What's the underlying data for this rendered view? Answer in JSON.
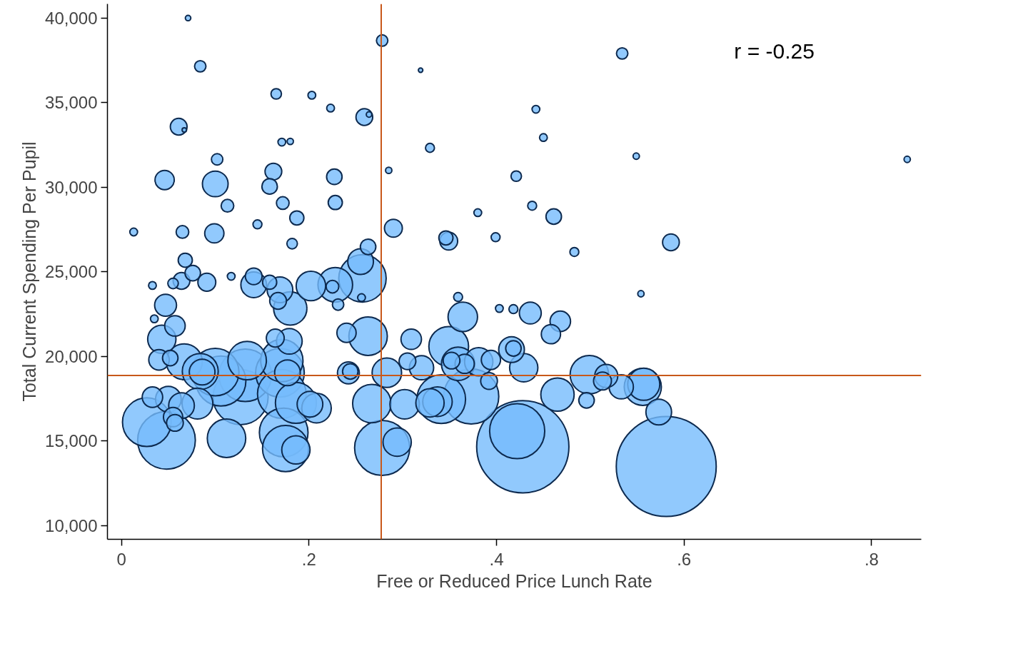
{
  "chart_data": {
    "type": "bubble",
    "xlabel": "Free or Reduced Price Lunch Rate",
    "ylabel": "Total Current Spending Per Pupil",
    "annotations": [
      "r = -0.25"
    ],
    "color": "#75bbfd",
    "marker": "circle",
    "grid": false,
    "xlim": [
      -0.015,
      0.853
    ],
    "ylim": [
      9200,
      40835
    ],
    "xticks": [
      0,
      {
        "value": 0.2,
        "label": ".2"
      },
      {
        "value": 0.4,
        "label": ".4"
      },
      {
        "value": 0.6,
        "label": ".6"
      },
      {
        "value": 0.8,
        "label": ".8"
      }
    ],
    "yticks": [
      {
        "value": 10000,
        "label": "10,000"
      },
      {
        "value": 15000,
        "label": "15,000"
      },
      {
        "value": 20000,
        "label": "20,000"
      },
      {
        "value": 25000,
        "label": "25,000"
      },
      {
        "value": 30000,
        "label": "30,000"
      },
      {
        "value": 35000,
        "label": "35,000"
      },
      {
        "value": 40000,
        "label": "40,000"
      }
    ],
    "ref_lines": [
      {
        "axis": "x",
        "value": 0.277,
        "color": "#c8581a"
      },
      {
        "axis": "y",
        "value": 18880,
        "color": "#c8581a"
      }
    ],
    "x": [
      0.071,
      0.278,
      0.084,
      0.319,
      0.534,
      0.165,
      0.203,
      0.223,
      0.259,
      0.264,
      0.442,
      0.061,
      0.067,
      0.45,
      0.171,
      0.18,
      0.329,
      0.102,
      0.549,
      0.838,
      0.046,
      0.1,
      0.162,
      0.158,
      0.227,
      0.285,
      0.421,
      0.113,
      0.172,
      0.228,
      0.438,
      0.38,
      0.461,
      0.187,
      0.013,
      0.065,
      0.099,
      0.29,
      0.145,
      0.346,
      0.349,
      0.399,
      0.586,
      0.182,
      0.483,
      0.263,
      0.068,
      0.255,
      0.257,
      0.076,
      0.033,
      0.055,
      0.064,
      0.091,
      0.117,
      0.141,
      0.141,
      0.158,
      0.169,
      0.202,
      0.228,
      0.225,
      0.256,
      0.554,
      0.359,
      0.231,
      0.047,
      0.167,
      0.18,
      0.035,
      0.057,
      0.364,
      0.403,
      0.418,
      0.436,
      0.468,
      0.043,
      0.24,
      0.263,
      0.458,
      0.164,
      0.179,
      0.309,
      0.349,
      0.04,
      0.067,
      0.052,
      0.084,
      0.086,
      0.1,
      0.106,
      0.134,
      0.132,
      0.171,
      0.169,
      0.177,
      0.127,
      0.305,
      0.32,
      0.359,
      0.352,
      0.366,
      0.381,
      0.394,
      0.416,
      0.418,
      0.429,
      0.242,
      0.244,
      0.283,
      0.499,
      0.517,
      0.513,
      0.533,
      0.556,
      0.557,
      0.033,
      0.05,
      0.081,
      0.064,
      0.055,
      0.057,
      0.171,
      0.186,
      0.201,
      0.208,
      0.267,
      0.302,
      0.329,
      0.341,
      0.337,
      0.373,
      0.392,
      0.465,
      0.496,
      0.573,
      0.027,
      0.048,
      0.112,
      0.173,
      0.175,
      0.186,
      0.278,
      0.294,
      0.428,
      0.422,
      0.581
    ],
    "values": [
      40000,
      38670,
      37150,
      36920,
      37910,
      35520,
      35440,
      34680,
      34150,
      34300,
      34610,
      33580,
      33390,
      32940,
      32670,
      32710,
      32330,
      31650,
      31840,
      31650,
      30430,
      30200,
      30930,
      30050,
      30620,
      31000,
      30660,
      28910,
      29070,
      29100,
      28910,
      28500,
      28270,
      28190,
      27360,
      27360,
      27280,
      27580,
      27810,
      27010,
      26820,
      27050,
      26750,
      26670,
      26180,
      26480,
      25690,
      25610,
      24620,
      24930,
      24200,
      24320,
      24470,
      24390,
      24740,
      24740,
      24240,
      24390,
      23940,
      24170,
      24240,
      24130,
      23480,
      23710,
      23520,
      23070,
      23030,
      23290,
      22840,
      22230,
      21810,
      22340,
      22840,
      22800,
      22570,
      22080,
      21020,
      21400,
      21200,
      21320,
      21090,
      20900,
      21020,
      20600,
      19800,
      19690,
      19910,
      19120,
      19080,
      19080,
      18550,
      19760,
      18890,
      19760,
      19040,
      19040,
      17600,
      19720,
      19340,
      19570,
      19760,
      19570,
      19690,
      19800,
      20410,
      20480,
      19340,
      19030,
      19120,
      19040,
      18930,
      18850,
      18550,
      18210,
      18210,
      18360,
      17600,
      17480,
      17220,
      17100,
      16420,
      16080,
      17790,
      17260,
      17180,
      16950,
      17220,
      17180,
      17260,
      17480,
      17330,
      17640,
      18550,
      17750,
      17410,
      16720,
      16120,
      15050,
      15170,
      15510,
      14560,
      14480,
      14600,
      14940,
      14670,
      15590,
      13500
    ],
    "sizes": [
      0.003,
      0.013,
      0.013,
      0.002,
      0.013,
      0.011,
      0.006,
      0.006,
      0.028,
      0.003,
      0.006,
      0.028,
      0.002,
      0.006,
      0.006,
      0.004,
      0.008,
      0.013,
      0.004,
      0.004,
      0.037,
      0.066,
      0.028,
      0.024,
      0.024,
      0.004,
      0.011,
      0.016,
      0.016,
      0.02,
      0.008,
      0.006,
      0.024,
      0.02,
      0.006,
      0.016,
      0.037,
      0.032,
      0.008,
      0.02,
      0.032,
      0.008,
      0.028,
      0.011,
      0.008,
      0.024,
      0.02,
      0.066,
      0.225,
      0.024,
      0.006,
      0.011,
      0.028,
      0.032,
      0.006,
      0.028,
      0.066,
      0.02,
      0.066,
      0.087,
      0.12,
      0.016,
      0.006,
      0.004,
      0.008,
      0.013,
      0.048,
      0.028,
      0.111,
      0.006,
      0.042,
      0.087,
      0.006,
      0.008,
      0.048,
      0.042,
      0.08,
      0.037,
      0.148,
      0.037,
      0.032,
      0.066,
      0.042,
      0.158,
      0.042,
      0.129,
      0.024,
      0.129,
      0.066,
      0.225,
      0.25,
      0.148,
      0.276,
      0.179,
      0.237,
      0.066,
      0.304,
      0.028,
      0.059,
      0.111,
      0.028,
      0.037,
      0.08,
      0.037,
      0.066,
      0.024,
      0.08,
      0.048,
      0.024,
      0.087,
      0.148,
      0.053,
      0.032,
      0.059,
      0.138,
      0.103,
      0.042,
      0.066,
      0.095,
      0.066,
      0.037,
      0.028,
      0.237,
      0.168,
      0.066,
      0.087,
      0.148,
      0.087,
      0.08,
      0.237,
      0.087,
      0.304,
      0.028,
      0.111,
      0.024,
      0.066,
      0.237,
      0.333,
      0.148,
      0.237,
      0.213,
      0.08,
      0.304,
      0.08,
      0.852,
      0.304,
      1
    ]
  }
}
